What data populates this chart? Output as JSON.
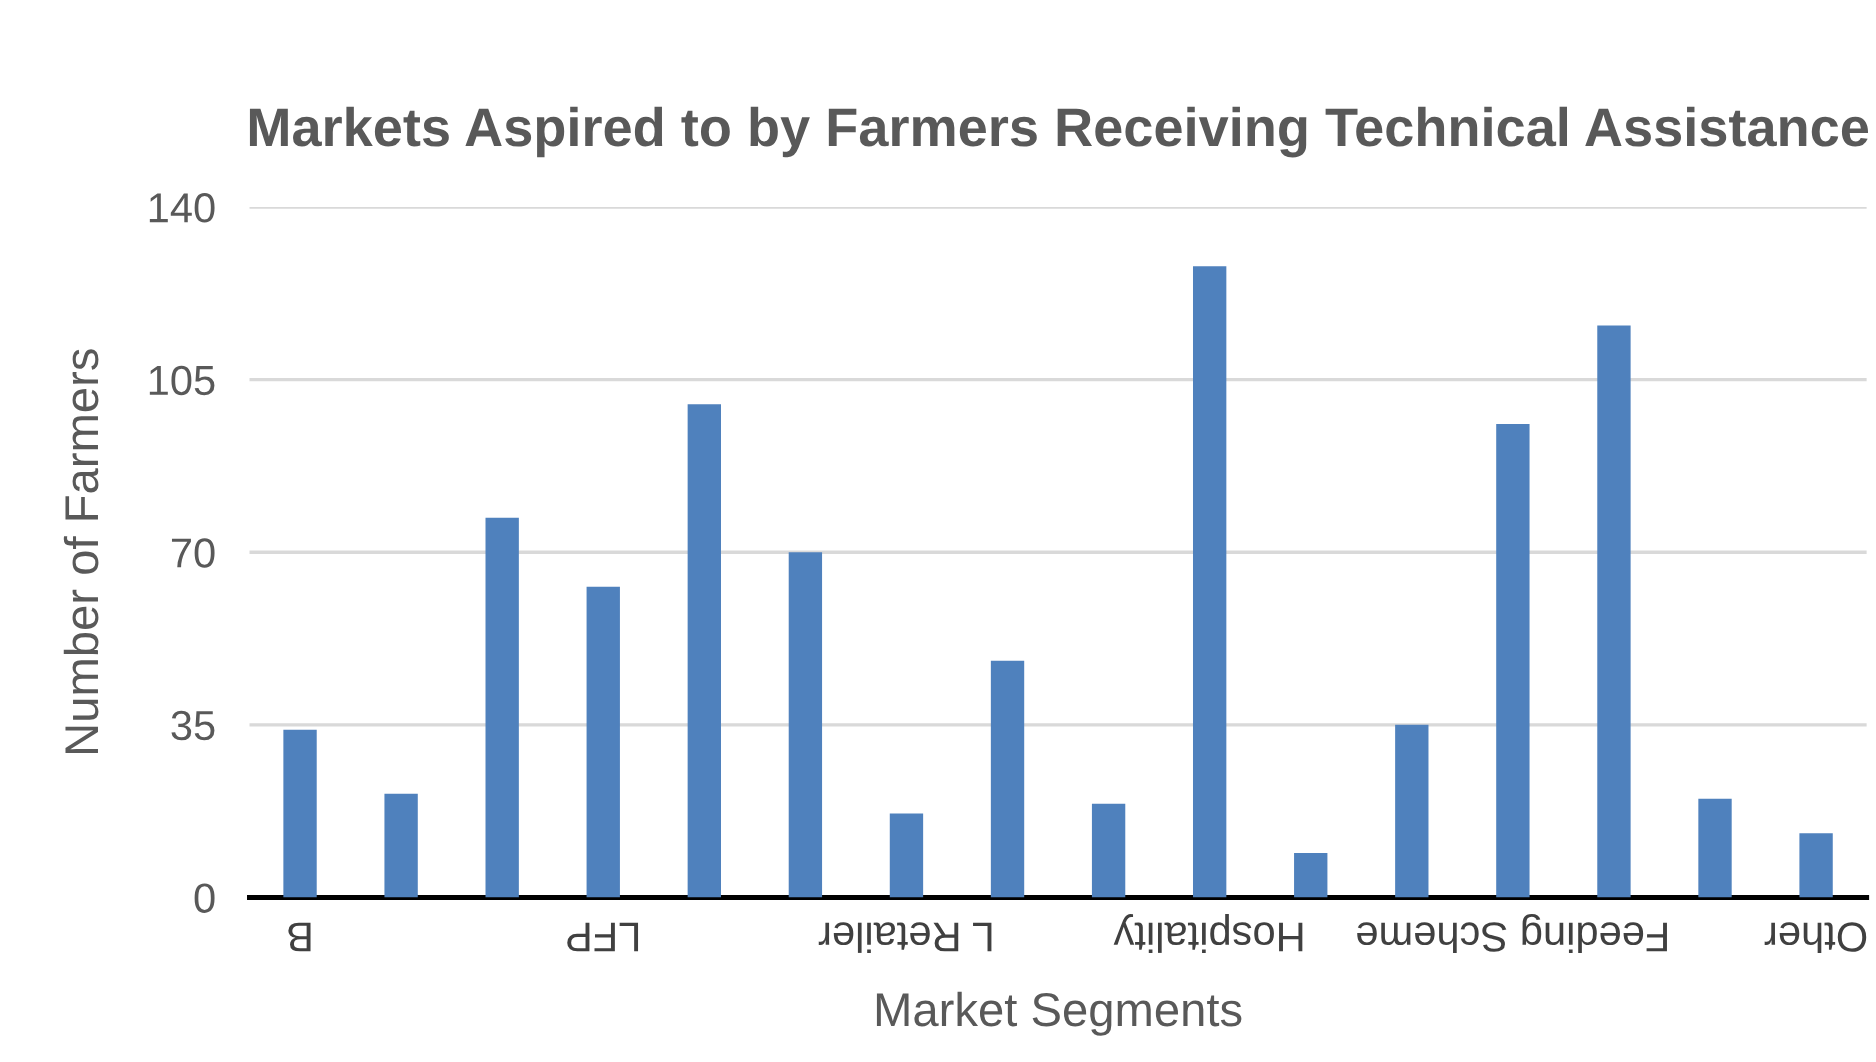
{
  "chart_data": {
    "type": "bar",
    "title": "Markets Aspired to by Farmers Receiving Technical Assistance",
    "xlabel": "Market Segments",
    "ylabel": "Number of Farmers",
    "categories": [
      "B",
      null,
      null,
      "LFP",
      null,
      null,
      "L Retailer",
      null,
      null,
      "Hospitality",
      null,
      null,
      "Feeding Scheme",
      null,
      null,
      "Other"
    ],
    "values": [
      34,
      21,
      77,
      63,
      100,
      70,
      17,
      48,
      19,
      128,
      9,
      35,
      96,
      116,
      20,
      13
    ],
    "color": "#4f81bd",
    "ylim": [
      0,
      140
    ],
    "yticks": [
      0,
      35,
      70,
      105,
      140
    ],
    "grid": "y"
  }
}
